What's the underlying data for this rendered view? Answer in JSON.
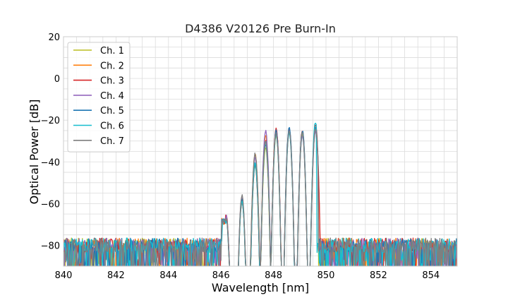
{
  "chart_data": {
    "type": "line",
    "title": "D4386 V20126 Pre Burn-In",
    "xlabel": "Wavelength [nm]",
    "ylabel": "Optical Power [dB]",
    "xlim": [
      840,
      855
    ],
    "ylim": [
      -90,
      20
    ],
    "xticks": [
      840,
      842,
      844,
      846,
      848,
      850,
      852,
      854
    ],
    "yticks": [
      20,
      0,
      -20,
      -40,
      -60,
      -80
    ],
    "grid": true,
    "legend_position": "top-left",
    "noise_floor_db": -80,
    "series": [
      {
        "name": "Ch. 1",
        "color": "#bcbd22",
        "peaks": [
          [
            846.2,
            -67
          ],
          [
            846.8,
            -59
          ],
          [
            847.3,
            -42
          ],
          [
            847.7,
            -33
          ],
          [
            848.1,
            -27
          ],
          [
            848.6,
            -25
          ],
          [
            849.1,
            -27
          ],
          [
            849.6,
            -25
          ]
        ],
        "edges": [
          846.05,
          849.65
        ]
      },
      {
        "name": "Ch. 2",
        "color": "#ff7f0e",
        "peaks": [
          [
            846.2,
            -66
          ],
          [
            846.8,
            -58
          ],
          [
            847.3,
            -36
          ],
          [
            847.7,
            -27
          ],
          [
            848.1,
            -24
          ],
          [
            848.6,
            -24
          ],
          [
            849.1,
            -26
          ],
          [
            849.6,
            -24
          ]
        ],
        "edges": [
          846.05,
          849.7
        ]
      },
      {
        "name": "Ch. 3",
        "color": "#d62728",
        "peaks": [
          [
            846.2,
            -65
          ],
          [
            846.8,
            -59
          ],
          [
            847.3,
            -41
          ],
          [
            847.7,
            -30
          ],
          [
            848.1,
            -24
          ],
          [
            848.6,
            -24
          ],
          [
            849.1,
            -25
          ],
          [
            849.6,
            -22
          ]
        ],
        "edges": [
          846.05,
          849.75
        ]
      },
      {
        "name": "Ch. 4",
        "color": "#9467bd",
        "peaks": [
          [
            846.2,
            -66
          ],
          [
            846.8,
            -57
          ],
          [
            847.3,
            -38
          ],
          [
            847.7,
            -25
          ],
          [
            848.1,
            -25
          ],
          [
            848.6,
            -25
          ],
          [
            849.1,
            -27
          ],
          [
            849.6,
            -25
          ]
        ],
        "edges": [
          846.05,
          849.65
        ]
      },
      {
        "name": "Ch. 5",
        "color": "#1f77b4",
        "peaks": [
          [
            846.2,
            -67
          ],
          [
            846.8,
            -58
          ],
          [
            847.3,
            -41
          ],
          [
            847.7,
            -31
          ],
          [
            848.1,
            -25
          ],
          [
            848.6,
            -23
          ],
          [
            849.1,
            -25
          ],
          [
            849.6,
            -23
          ]
        ],
        "edges": [
          846.05,
          849.65
        ]
      },
      {
        "name": "Ch. 6",
        "color": "#17becf",
        "peaks": [
          [
            846.2,
            -68
          ],
          [
            846.8,
            -59
          ],
          [
            847.3,
            -40
          ],
          [
            847.7,
            -30
          ],
          [
            848.1,
            -27
          ],
          [
            848.6,
            -26
          ],
          [
            849.1,
            -26
          ],
          [
            849.6,
            -21
          ]
        ],
        "edges": [
          846.1,
          849.6
        ]
      },
      {
        "name": "Ch. 7",
        "color": "#7f7f7f",
        "peaks": [
          [
            846.2,
            -67
          ],
          [
            846.8,
            -56
          ],
          [
            847.3,
            -36
          ],
          [
            847.7,
            -30
          ],
          [
            848.1,
            -26
          ],
          [
            848.6,
            -25
          ],
          [
            849.1,
            -26
          ],
          [
            849.6,
            -24
          ]
        ],
        "edges": [
          846.05,
          849.65
        ]
      }
    ]
  }
}
